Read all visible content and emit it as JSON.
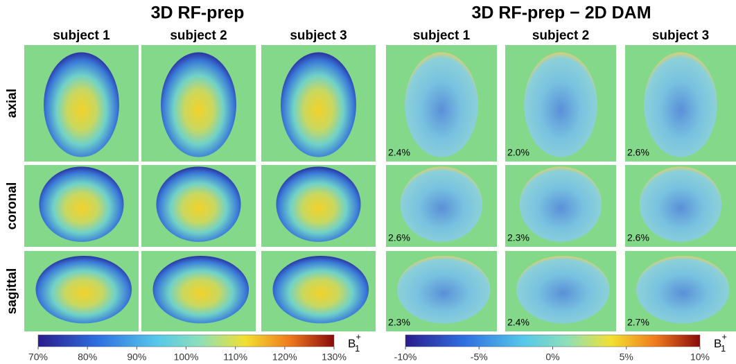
{
  "left_title": "3D RF-prep",
  "right_title": "3D RF-prep − 2D DAM",
  "left_columns": [
    "subject 1",
    "subject 2",
    "subject 3"
  ],
  "right_columns": [
    "subject 1",
    "subject 2",
    "subject 3"
  ],
  "rows": [
    "axial",
    "coronal",
    "sagittal"
  ],
  "right_panel_labels": [
    [
      "2.4%",
      "2.0%",
      "2.6%"
    ],
    [
      "2.6%",
      "2.3%",
      "2.6%"
    ],
    [
      "2.3%",
      "2.4%",
      "2.7%"
    ]
  ],
  "left_colorbar": {
    "ticks": [
      "70%",
      "80%",
      "90%",
      "100%",
      "110%",
      "120%",
      "130%"
    ],
    "label": {
      "base": "B",
      "sup": "+",
      "sub": "1"
    }
  },
  "right_colorbar": {
    "ticks": [
      "-10%",
      "-5%",
      "0%",
      "5%",
      "10%"
    ],
    "label": {
      "base": "B",
      "sup": "+",
      "sub": "1"
    }
  }
}
